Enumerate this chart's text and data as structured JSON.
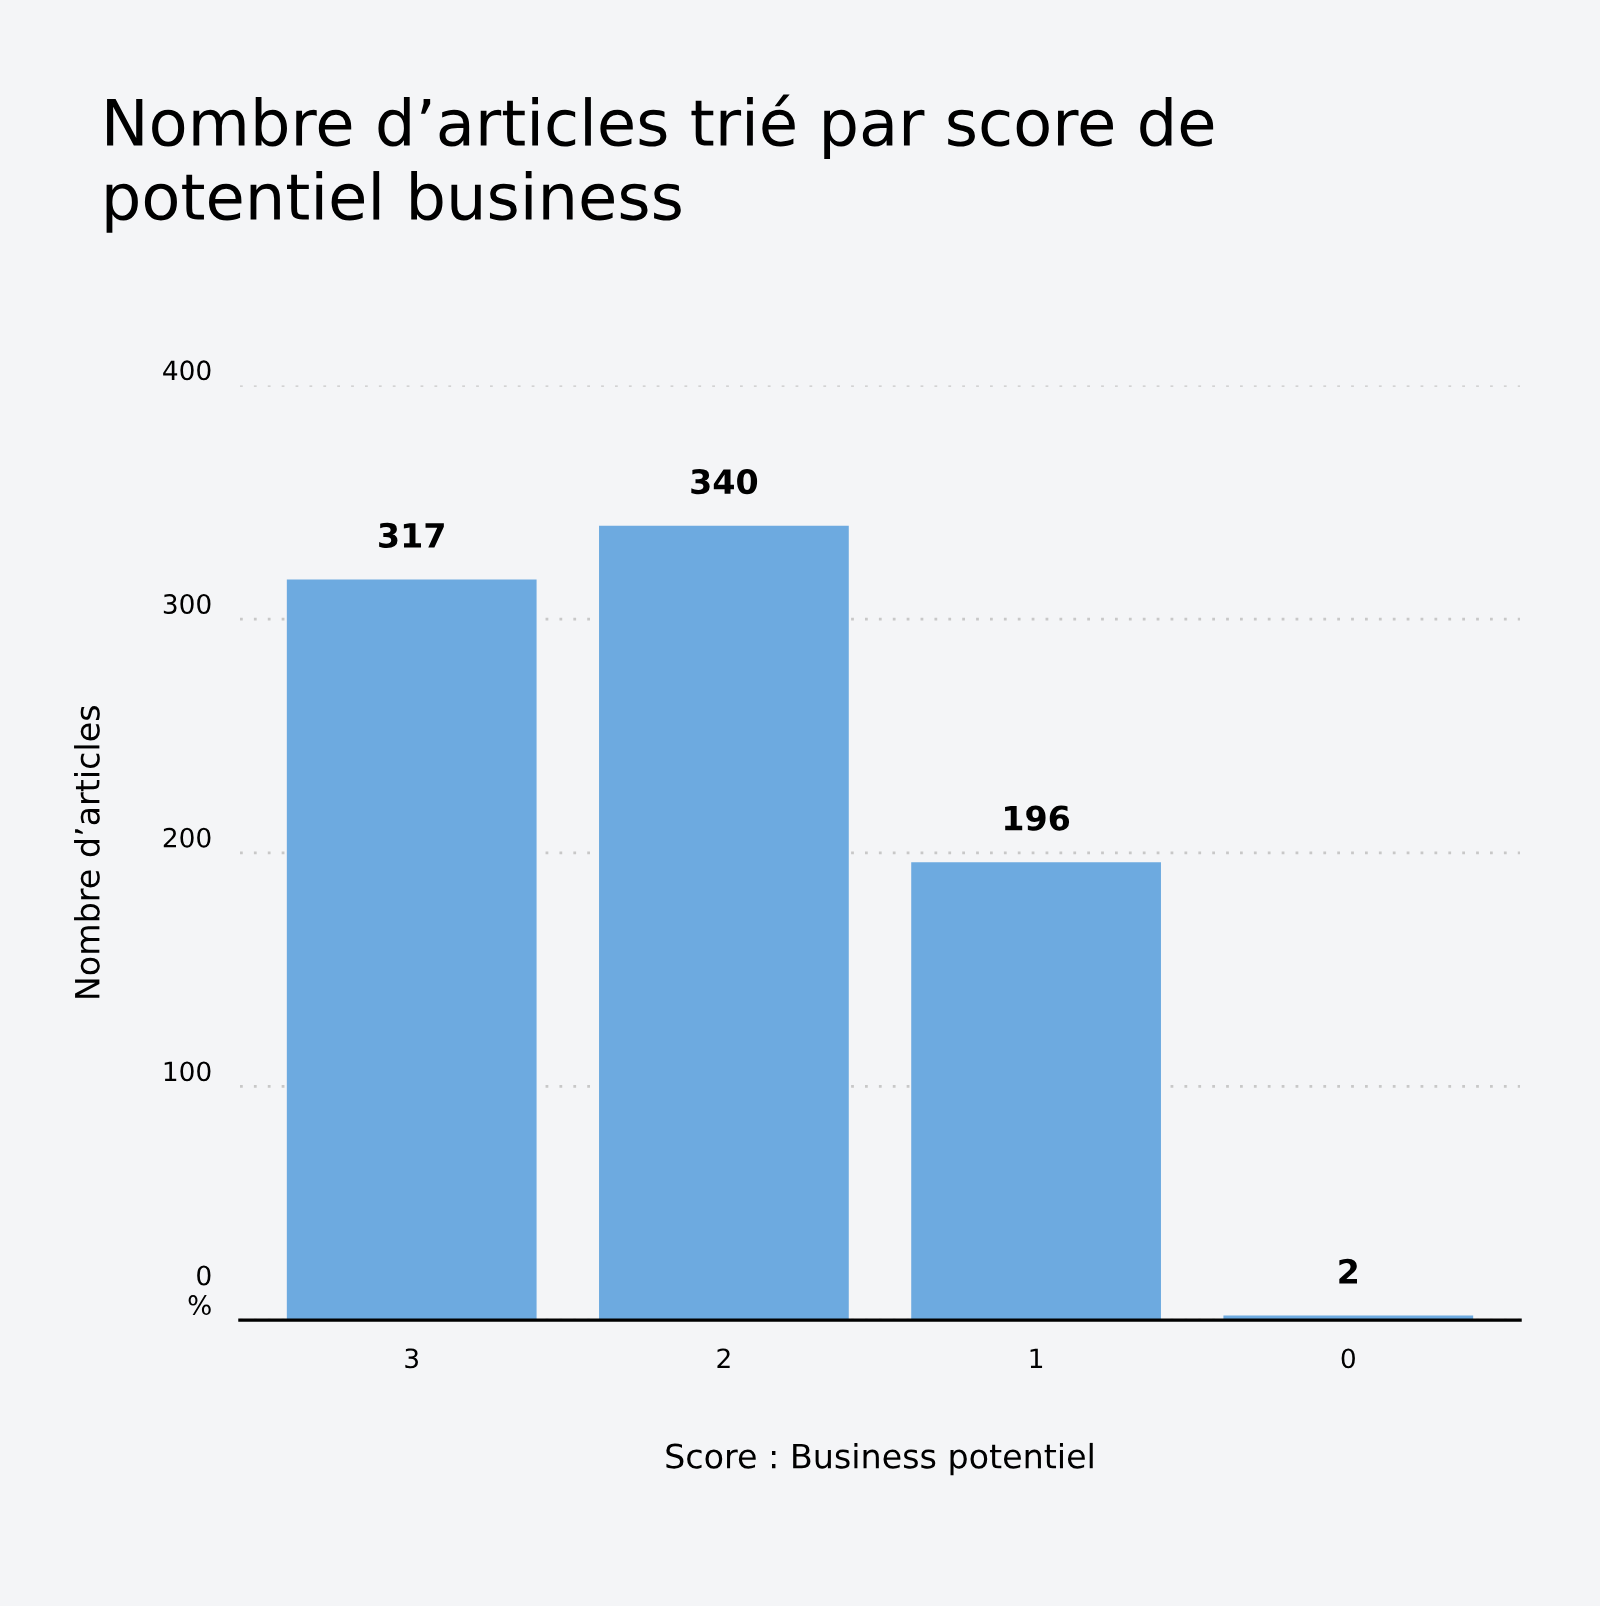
{
  "chart_data": {
    "type": "bar",
    "title": "Nombre d’articles trié par score de\npotentiel business",
    "xlabel": "Score : Business potentiel",
    "ylabel": "Nombre d’articles",
    "categories": [
      "3",
      "2",
      "1",
      "0"
    ],
    "series": [
      {
        "color": "#6daae0",
        "values": [
          317,
          340,
          196,
          2
        ]
      }
    ],
    "ylim": [
      0,
      400
    ],
    "yticks": [
      {
        "value": 0,
        "label": "0\n%"
      },
      100,
      200,
      300,
      400
    ],
    "grid": "y",
    "data_labels": true,
    "legend": false
  }
}
